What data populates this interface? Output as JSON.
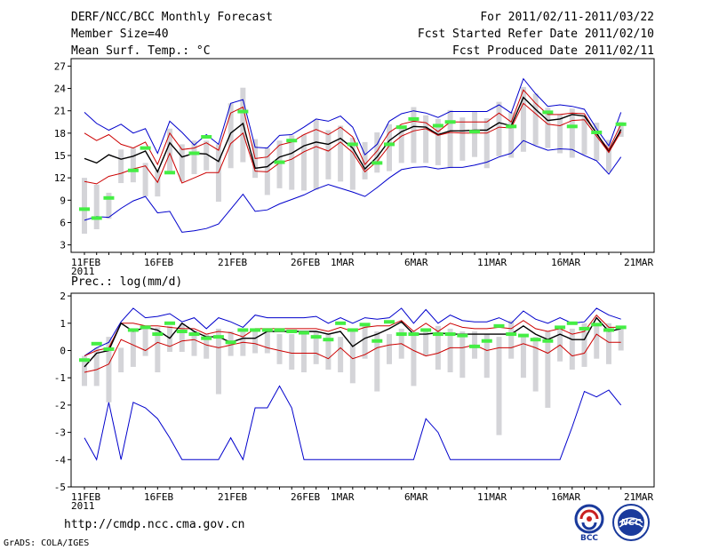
{
  "header": {
    "title": "DERF/NCC/BCC Monthly Forecast",
    "member": "Member Size=40",
    "variable1": "Mean Surf. Temp.: °C",
    "period": "For 2011/02/11-2011/03/22",
    "started": "Fcst Started Refer Date 2011/02/10",
    "produced": "Fcst Produced Date 2011/02/11"
  },
  "footer": {
    "url": "http://cmdp.ncc.cma.gov.cn",
    "credit": "GrADS: COLA/IGES",
    "logo1": "BCC",
    "logo2": "NCC"
  },
  "colors": {
    "max_min": "#0000cc",
    "spread": "#cc0000",
    "mean": "#000000",
    "observed": "#44ee44",
    "bar": "#d4d4d8"
  },
  "chart_data": [
    {
      "type": "line",
      "title": "Mean Surf. Temp.: °C",
      "x_tick_labels": [
        "11FEB",
        "16FEB",
        "21FEB",
        "26FEB",
        "1MAR",
        "6MAR",
        "11MAR",
        "16MAR",
        "21MAR"
      ],
      "x_year_label": "2011",
      "ylim": [
        2,
        28
      ],
      "yticks": [
        3,
        6,
        9,
        12,
        15,
        18,
        21,
        24,
        27
      ],
      "days": 40,
      "series": [
        {
          "name": "Maximum member",
          "values": [
            20.8,
            19.3,
            18.4,
            19.2,
            18.0,
            18.6,
            15.3,
            19.6,
            18.1,
            16.4,
            17.8,
            16.5,
            22.0,
            22.5,
            16.1,
            16.0,
            17.7,
            17.8,
            18.8,
            19.9,
            19.6,
            20.3,
            18.8,
            15.1,
            16.5,
            19.6,
            20.6,
            21.0,
            20.7,
            20.1,
            20.9,
            20.9,
            20.9,
            20.9,
            21.8,
            20.7,
            25.3,
            23.3,
            21.6,
            21.8,
            21.6,
            21.2,
            18.6,
            16.3,
            20.8
          ]
        },
        {
          "name": "Mean + spread",
          "values": [
            18.0,
            17.0,
            17.8,
            16.5,
            16.0,
            16.8,
            13.8,
            18.0,
            15.8,
            16.0,
            16.7,
            15.7,
            20.7,
            21.5,
            14.6,
            14.8,
            16.4,
            16.8,
            17.8,
            18.5,
            17.8,
            18.8,
            17.5,
            13.8,
            15.6,
            18.1,
            19.2,
            19.6,
            19.4,
            18.2,
            19.5,
            19.5,
            19.5,
            19.5,
            20.7,
            19.5,
            23.8,
            22.0,
            20.5,
            20.5,
            20.7,
            20.6,
            17.9,
            15.8,
            19.2
          ]
        },
        {
          "name": "Ensemble mean",
          "values": [
            14.6,
            14.0,
            15.1,
            14.5,
            14.9,
            15.6,
            12.8,
            16.7,
            14.8,
            15.3,
            15.2,
            14.2,
            18.0,
            19.3,
            13.3,
            13.5,
            14.8,
            15.3,
            16.3,
            16.8,
            16.5,
            17.3,
            16.0,
            13.2,
            14.8,
            17.0,
            18.2,
            18.9,
            18.8,
            17.8,
            18.3,
            18.3,
            18.4,
            18.4,
            19.4,
            19.0,
            22.8,
            21.2,
            19.7,
            19.9,
            20.5,
            20.3,
            18.0,
            15.5,
            18.5
          ]
        },
        {
          "name": "Mean - spread",
          "values": [
            11.5,
            11.2,
            12.2,
            12.6,
            13.2,
            13.6,
            11.4,
            15.3,
            11.3,
            12.0,
            12.7,
            12.7,
            16.6,
            18.0,
            12.9,
            12.8,
            14.0,
            14.5,
            15.5,
            16.2,
            15.6,
            16.8,
            15.4,
            12.8,
            14.2,
            16.3,
            17.6,
            18.3,
            18.6,
            17.7,
            18.1,
            18.0,
            18.0,
            18.0,
            18.8,
            18.7,
            22.0,
            20.6,
            19.2,
            19.0,
            19.7,
            19.8,
            17.6,
            15.4,
            18.2
          ]
        },
        {
          "name": "Minimum member",
          "values": [
            6.3,
            6.8,
            6.7,
            7.9,
            8.9,
            9.5,
            7.3,
            7.5,
            4.7,
            4.9,
            5.2,
            5.8,
            7.8,
            9.8,
            7.5,
            7.7,
            8.5,
            9.1,
            9.7,
            10.5,
            11.1,
            10.6,
            10.1,
            9.5,
            10.7,
            12.0,
            13.1,
            13.4,
            13.5,
            13.2,
            13.4,
            13.4,
            13.7,
            14.1,
            14.8,
            15.3,
            17.0,
            16.3,
            15.7,
            15.9,
            15.8,
            15.0,
            14.3,
            12.5,
            14.8
          ]
        }
      ],
      "observed": [
        7.8,
        6.6,
        9.3,
        null,
        13.0,
        16.0,
        null,
        12.7,
        null,
        15.3,
        17.5,
        null,
        null,
        20.9,
        null,
        null,
        14.1,
        17.0,
        null,
        null,
        null,
        null,
        16.5,
        null,
        14.0,
        16.5,
        18.8,
        19.9,
        null,
        19.0,
        19.5,
        null,
        18.2,
        null,
        null,
        18.9,
        null,
        null,
        20.8,
        null,
        18.9,
        null,
        18.1,
        null,
        19.2
      ],
      "bars": [
        [
          4.5,
          12.0
        ],
        [
          5.1,
          11.1
        ],
        [
          6.5,
          10.0
        ],
        [
          11.3,
          15.8
        ],
        [
          11.4,
          16.0
        ],
        [
          9.5,
          14.0
        ],
        [
          9.5,
          13.0
        ],
        [
          12.5,
          18.6
        ],
        [
          11.5,
          16.5
        ],
        [
          12.5,
          17.0
        ],
        [
          13.0,
          17.0
        ],
        [
          8.8,
          16.5
        ],
        [
          13.3,
          22.0
        ],
        [
          14.1,
          24.1
        ],
        [
          12.0,
          17.2
        ],
        [
          9.7,
          16.0
        ],
        [
          10.6,
          17.0
        ],
        [
          10.4,
          17.7
        ],
        [
          10.3,
          17.8
        ],
        [
          10.4,
          19.8
        ],
        [
          11.8,
          18.4
        ],
        [
          11.5,
          19.0
        ],
        [
          10.4,
          17.4
        ],
        [
          11.8,
          16.8
        ],
        [
          12.7,
          18.1
        ],
        [
          12.9,
          19.2
        ],
        [
          14.0,
          19.0
        ],
        [
          14.0,
          21.5
        ],
        [
          14.0,
          20.4
        ],
        [
          13.7,
          19.9
        ],
        [
          13.3,
          21.1
        ],
        [
          14.3,
          20.1
        ],
        [
          14.8,
          20.9
        ],
        [
          13.3,
          20.0
        ],
        [
          14.9,
          22.2
        ],
        [
          14.7,
          20.8
        ],
        [
          15.5,
          24.2
        ],
        [
          16.4,
          23.3
        ],
        [
          16.0,
          21.4
        ],
        [
          15.3,
          20.5
        ],
        [
          14.7,
          21.3
        ],
        [
          15.1,
          20.2
        ],
        [
          14.3,
          19.4
        ],
        [
          12.8,
          17.1
        ],
        [
          17.5,
          19.5
        ]
      ]
    },
    {
      "type": "line",
      "title": "Prec.: log(mm/d)",
      "x_tick_labels": [
        "11FEB",
        "16FEB",
        "21FEB",
        "26FEB",
        "1MAR",
        "6MAR",
        "11MAR",
        "16MAR",
        "21MAR"
      ],
      "x_year_label": "2011",
      "ylim": [
        -5,
        2.1
      ],
      "yticks": [
        2,
        1,
        0,
        -1,
        -2,
        -3,
        -4,
        -5
      ],
      "days": 40,
      "series": [
        {
          "name": "Maximum member",
          "values": [
            -0.2,
            0.1,
            0.3,
            1.05,
            1.55,
            1.2,
            1.25,
            1.35,
            1.05,
            1.2,
            0.8,
            1.2,
            1.05,
            0.85,
            1.3,
            1.2,
            1.2,
            1.2,
            1.2,
            1.25,
            1.0,
            1.2,
            1.0,
            1.2,
            1.15,
            1.2,
            1.55,
            1.0,
            1.5,
            1.0,
            1.3,
            1.1,
            1.05,
            1.05,
            1.2,
            1.0,
            1.45,
            1.15,
            1.0,
            1.2,
            1.0,
            1.05,
            1.55,
            1.3,
            1.15
          ]
        },
        {
          "name": "Mean + spread",
          "values": [
            -0.2,
            0.0,
            0.1,
            1.0,
            1.0,
            0.9,
            0.9,
            0.85,
            0.8,
            0.8,
            0.6,
            0.7,
            0.65,
            0.5,
            0.8,
            0.8,
            0.8,
            0.8,
            0.8,
            0.8,
            0.7,
            0.85,
            0.7,
            0.85,
            0.9,
            0.9,
            1.1,
            0.7,
            1.0,
            0.7,
            1.0,
            0.85,
            0.8,
            0.8,
            0.85,
            0.8,
            1.1,
            0.8,
            0.7,
            0.8,
            0.6,
            0.7,
            1.3,
            0.85,
            0.85
          ]
        },
        {
          "name": "Ensemble mean",
          "values": [
            -0.6,
            -0.1,
            0.0,
            1.0,
            0.7,
            0.85,
            0.75,
            0.45,
            1.0,
            0.7,
            0.5,
            0.5,
            0.3,
            0.45,
            0.45,
            0.7,
            0.7,
            0.7,
            0.7,
            0.7,
            0.6,
            0.7,
            0.15,
            0.45,
            0.6,
            0.8,
            1.05,
            0.6,
            0.6,
            0.65,
            0.6,
            0.6,
            0.6,
            0.6,
            0.6,
            0.6,
            0.9,
            0.6,
            0.4,
            0.6,
            0.4,
            0.4,
            1.2,
            0.7,
            0.8
          ]
        },
        {
          "name": "Mean - spread",
          "values": [
            -0.8,
            -0.7,
            -0.5,
            0.4,
            0.2,
            0.0,
            0.3,
            0.15,
            0.35,
            0.4,
            0.2,
            0.1,
            0.2,
            0.3,
            0.25,
            0.1,
            0.0,
            -0.1,
            -0.1,
            -0.1,
            -0.3,
            0.1,
            -0.3,
            -0.15,
            0.1,
            0.2,
            0.25,
            0.0,
            -0.2,
            -0.1,
            0.1,
            0.1,
            0.2,
            0.0,
            0.1,
            0.1,
            0.25,
            0.1,
            -0.1,
            0.2,
            -0.2,
            -0.1,
            0.6,
            0.3,
            0.3
          ]
        },
        {
          "name": "Minimum member",
          "values": [
            -3.2,
            -4.0,
            -1.9,
            -4.0,
            -1.9,
            -2.1,
            -2.5,
            -3.2,
            -4.0,
            -4.0,
            -4.0,
            -4.0,
            -3.2,
            -4.0,
            -2.1,
            -2.1,
            -1.3,
            -2.1,
            -4.0,
            -4.0,
            -4.0,
            -4.0,
            -4.0,
            -4.0,
            -4.0,
            -4.0,
            -4.0,
            -4.0,
            -2.5,
            -3.0,
            -4.0,
            -4.0,
            -4.0,
            -4.0,
            -4.0,
            -4.0,
            -4.0,
            -4.0,
            -4.0,
            -4.0,
            -2.8,
            -1.5,
            -1.7,
            -1.45,
            -2.0
          ]
        }
      ],
      "observed": [
        -0.35,
        0.25,
        0.05,
        null,
        0.75,
        0.85,
        0.6,
        1.0,
        0.7,
        0.6,
        0.45,
        0.5,
        0.3,
        0.75,
        0.75,
        0.75,
        0.75,
        0.7,
        0.65,
        0.5,
        0.4,
        1.0,
        0.75,
        0.95,
        0.35,
        1.05,
        0.6,
        0.6,
        0.75,
        0.6,
        0.6,
        0.55,
        0.15,
        0.35,
        0.9,
        0.6,
        0.55,
        0.4,
        0.35,
        0.85,
        1.0,
        0.8,
        0.95,
        0.75,
        0.85
      ],
      "bars": [
        [
          -1.3,
          -0.2
        ],
        [
          -1.3,
          0.1
        ],
        [
          -1.9,
          0.5
        ],
        [
          -0.8,
          0.1
        ],
        [
          -0.6,
          0.8
        ],
        [
          -0.2,
          0.8
        ],
        [
          -0.8,
          0.85
        ],
        [
          -0.05,
          0.9
        ],
        [
          -0.05,
          1.0
        ],
        [
          -0.2,
          0.7
        ],
        [
          -0.3,
          0.6
        ],
        [
          -1.6,
          0.8
        ],
        [
          -0.2,
          0.7
        ],
        [
          -0.2,
          0.7
        ],
        [
          -0.1,
          0.8
        ],
        [
          -0.1,
          0.8
        ],
        [
          -0.5,
          0.6
        ],
        [
          -0.7,
          0.6
        ],
        [
          -0.8,
          0.7
        ],
        [
          -0.5,
          0.7
        ],
        [
          -0.7,
          0.6
        ],
        [
          -0.8,
          0.5
        ],
        [
          -1.2,
          0.7
        ],
        [
          -0.3,
          0.9
        ],
        [
          -1.5,
          0.7
        ],
        [
          -0.5,
          0.6
        ],
        [
          -0.3,
          0.8
        ],
        [
          -1.3,
          0.7
        ],
        [
          -0.2,
          0.8
        ],
        [
          -0.7,
          0.9
        ],
        [
          -0.8,
          0.8
        ],
        [
          -1.0,
          0.7
        ],
        [
          -0.3,
          0.7
        ],
        [
          -1.0,
          0.6
        ],
        [
          -3.1,
          0.5
        ],
        [
          -0.3,
          1.1
        ],
        [
          -1.0,
          0.5
        ],
        [
          -1.5,
          0.5
        ],
        [
          -2.1,
          0.7
        ],
        [
          -0.4,
          0.9
        ],
        [
          -0.7,
          0.8
        ],
        [
          -0.6,
          1.0
        ],
        [
          -0.3,
          0.9
        ],
        [
          -0.5,
          1.0
        ],
        [
          0.0,
          0.9
        ]
      ]
    }
  ]
}
